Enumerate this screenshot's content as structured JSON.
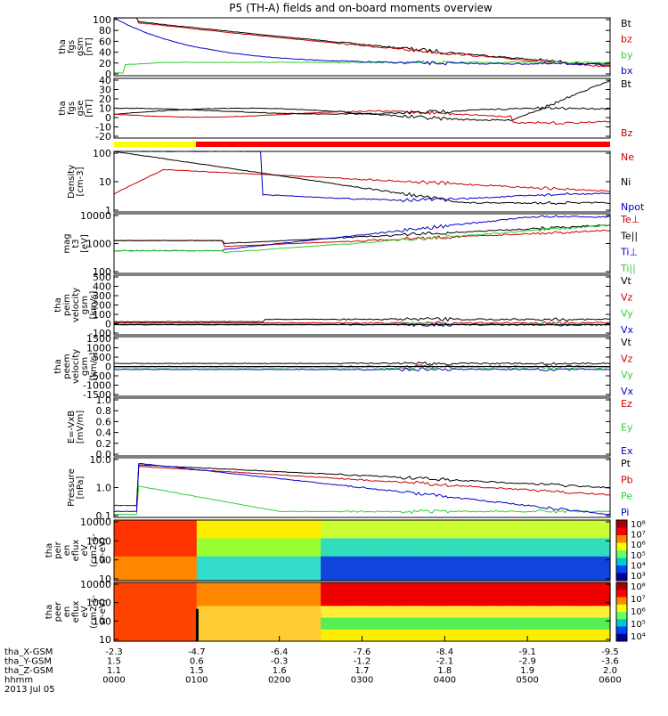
{
  "title": "P5 (TH-A) fields and on-board moments overview",
  "colors": {
    "black": "#000000",
    "red": "#cc0000",
    "green": "#33cc33",
    "blue": "#0000cc",
    "yellow": "#ffff00",
    "bar_red": "#ff0000"
  },
  "chart_data": [
    {
      "id": "fgs_gsm",
      "type": "line",
      "ylabel": [
        "tha",
        "fgs",
        "gsm",
        "[nT]"
      ],
      "ticks": [
        "100",
        "80",
        "60",
        "40",
        "20",
        "0"
      ],
      "ylim": [
        -10,
        100
      ],
      "legend": [
        {
          "name": "Bt",
          "color": "#000000"
        },
        {
          "name": "bz",
          "color": "#cc0000"
        },
        {
          "name": "by",
          "color": "#33cc33"
        },
        {
          "name": "bx",
          "color": "#0000cc"
        }
      ]
    },
    {
      "id": "fgs_gse",
      "type": "line",
      "ylabel": [
        "tha",
        "fgs",
        "gse",
        "[nT]"
      ],
      "ticks": [
        "40",
        "30",
        "20",
        "10",
        "0",
        "-10",
        "-20"
      ],
      "ylim": [
        -25,
        40
      ],
      "legend": [
        {
          "name": "Bt",
          "color": "#000000"
        },
        {
          "name": "Bz",
          "color": "#cc0000"
        }
      ]
    },
    {
      "id": "density",
      "type": "line",
      "log": true,
      "ylabel": [
        "Density",
        "[cm-3]"
      ],
      "ticks": [
        "100",
        "10",
        "1"
      ],
      "legend": [
        {
          "name": "Ne",
          "color": "#cc0000"
        },
        {
          "name": "Ni",
          "color": "#000000"
        },
        {
          "name": "Npot",
          "color": "#0000cc"
        }
      ]
    },
    {
      "id": "temperature",
      "type": "line",
      "log": true,
      "ylabel": [
        "mag",
        "t3",
        "[eV]"
      ],
      "ticks": [
        "10000",
        "1000",
        "100"
      ],
      "legend": [
        {
          "name": "Te⊥",
          "color": "#cc0000"
        },
        {
          "name": "Te||",
          "color": "#000000"
        },
        {
          "name": "Ti⊥",
          "color": "#0000cc"
        },
        {
          "name": "Ti||",
          "color": "#33cc33"
        }
      ]
    },
    {
      "id": "peim_velocity",
      "type": "line",
      "ylabel": [
        "tha",
        "peim",
        "velocity",
        "gsm",
        "[km/s]"
      ],
      "ticks": [
        "500",
        "400",
        "300",
        "200",
        "100",
        "0",
        "-100"
      ],
      "ylim": [
        -100,
        500
      ],
      "legend": [
        {
          "name": "Vt",
          "color": "#000000"
        },
        {
          "name": "Vz",
          "color": "#cc0000"
        },
        {
          "name": "Vy",
          "color": "#33cc33"
        },
        {
          "name": "Vx",
          "color": "#0000cc"
        }
      ]
    },
    {
      "id": "peem_velocity",
      "type": "line",
      "ylabel": [
        "tha",
        "peem",
        "velocity",
        "gsm",
        "[km/s]"
      ],
      "ticks": [
        "1500",
        "1000",
        "500",
        "0",
        "-500",
        "-1000",
        "-1500"
      ],
      "ylim": [
        -1500,
        1500
      ],
      "legend": [
        {
          "name": "Vt",
          "color": "#000000"
        },
        {
          "name": "Vz",
          "color": "#cc0000"
        },
        {
          "name": "Vy",
          "color": "#33cc33"
        },
        {
          "name": "Vx",
          "color": "#0000cc"
        }
      ]
    },
    {
      "id": "e_field",
      "type": "line",
      "ylabel": [
        "E=-VxB",
        "[mV/m]"
      ],
      "ticks": [
        "1.0",
        "0.8",
        "0.6",
        "0.4",
        "0.2",
        "0.0"
      ],
      "ylim": [
        0,
        1
      ],
      "legend": [
        {
          "name": "Ez",
          "color": "#cc0000"
        },
        {
          "name": "Ey",
          "color": "#33cc33"
        },
        {
          "name": "Ex",
          "color": "#0000cc"
        }
      ]
    },
    {
      "id": "pressure",
      "type": "line",
      "log": true,
      "ylabel": [
        "Pressure",
        "[nPa]"
      ],
      "ticks": [
        "10.0",
        "1.0",
        "0.1"
      ],
      "legend": [
        {
          "name": "Pt",
          "color": "#000000"
        },
        {
          "name": "Pb",
          "color": "#cc0000"
        },
        {
          "name": "Pe",
          "color": "#33cc33"
        },
        {
          "name": "Pi",
          "color": "#0000cc"
        }
      ]
    },
    {
      "id": "peir_spec",
      "type": "heatmap",
      "log": true,
      "ylabel": [
        "tha",
        "peir",
        "en",
        "eflux",
        "eV",
        "(cm2-s-",
        "sr-eV)"
      ],
      "ticks": [
        "10000",
        "1000",
        "100",
        "10"
      ],
      "colorbar": [
        "10⁸",
        "10⁷",
        "10⁶",
        "10⁵",
        "10⁴",
        "10³"
      ]
    },
    {
      "id": "peer_spec",
      "type": "heatmap",
      "log": true,
      "ylabel": [
        "tha",
        "peer",
        "en",
        "eflux",
        "eV",
        "(cm2-s-",
        "sr-eV)"
      ],
      "ticks": [
        "10000",
        "1000",
        "100",
        "10"
      ],
      "colorbar": [
        "10⁸",
        "10⁷",
        "10⁶",
        "10⁵",
        "10⁴"
      ]
    }
  ],
  "x_axis": {
    "row_labels": [
      "tha_X-GSM",
      "tha_Y-GSM",
      "tha_Z-GSM",
      "hhmm",
      "2013 Jul 05"
    ],
    "columns": [
      [
        "-2.3",
        "1.5",
        "1.1",
        "0000"
      ],
      [
        "-4.7",
        "0.6",
        "1.5",
        "0100"
      ],
      [
        "-6.4",
        "-0.3",
        "1.6",
        "0200"
      ],
      [
        "-7.6",
        "-1.2",
        "1.7",
        "0300"
      ],
      [
        "-8.4",
        "-2.1",
        "1.8",
        "0400"
      ],
      [
        "-9.1",
        "-2.9",
        "1.9",
        "0500"
      ],
      [
        "-9.5",
        "-3.6",
        "2.0",
        "0600"
      ]
    ]
  }
}
